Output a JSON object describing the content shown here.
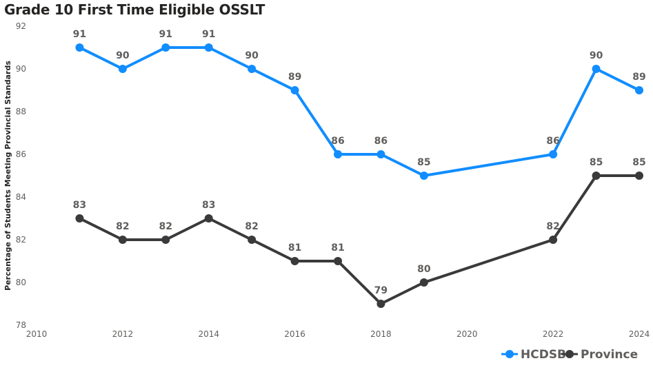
{
  "chart_data": {
    "type": "line",
    "title": "Grade 10 First Time Eligible OSSLT",
    "ylabel": "Percentage of Students Meeting Provincial Standards",
    "xlabel": "",
    "xlim": [
      2010,
      2024
    ],
    "ylim": [
      78,
      92
    ],
    "xticks": [
      2010,
      2012,
      2014,
      2016,
      2018,
      2020,
      2022,
      2024
    ],
    "yticks": [
      78,
      80,
      82,
      84,
      86,
      88,
      90,
      92
    ],
    "grid": false,
    "legend_position": "bottom-right",
    "series": [
      {
        "name": "HCDSB",
        "color": "#118DFF",
        "points": [
          {
            "x": 2011,
            "y": 91
          },
          {
            "x": 2012,
            "y": 90
          },
          {
            "x": 2013,
            "y": 91
          },
          {
            "x": 2014,
            "y": 91
          },
          {
            "x": 2015,
            "y": 90
          },
          {
            "x": 2016,
            "y": 89
          },
          {
            "x": 2017,
            "y": 86
          },
          {
            "x": 2018,
            "y": 86
          },
          {
            "x": 2019,
            "y": 85
          },
          {
            "x": 2022,
            "y": 86
          },
          {
            "x": 2023,
            "y": 90
          },
          {
            "x": 2024,
            "y": 89
          }
        ]
      },
      {
        "name": "Province",
        "color": "#3a3a3a",
        "points": [
          {
            "x": 2011,
            "y": 83
          },
          {
            "x": 2012,
            "y": 82
          },
          {
            "x": 2013,
            "y": 82
          },
          {
            "x": 2014,
            "y": 83
          },
          {
            "x": 2015,
            "y": 82
          },
          {
            "x": 2016,
            "y": 81
          },
          {
            "x": 2017,
            "y": 81
          },
          {
            "x": 2018,
            "y": 79
          },
          {
            "x": 2019,
            "y": 80
          },
          {
            "x": 2022,
            "y": 82
          },
          {
            "x": 2023,
            "y": 85
          },
          {
            "x": 2024,
            "y": 85
          }
        ]
      }
    ]
  }
}
